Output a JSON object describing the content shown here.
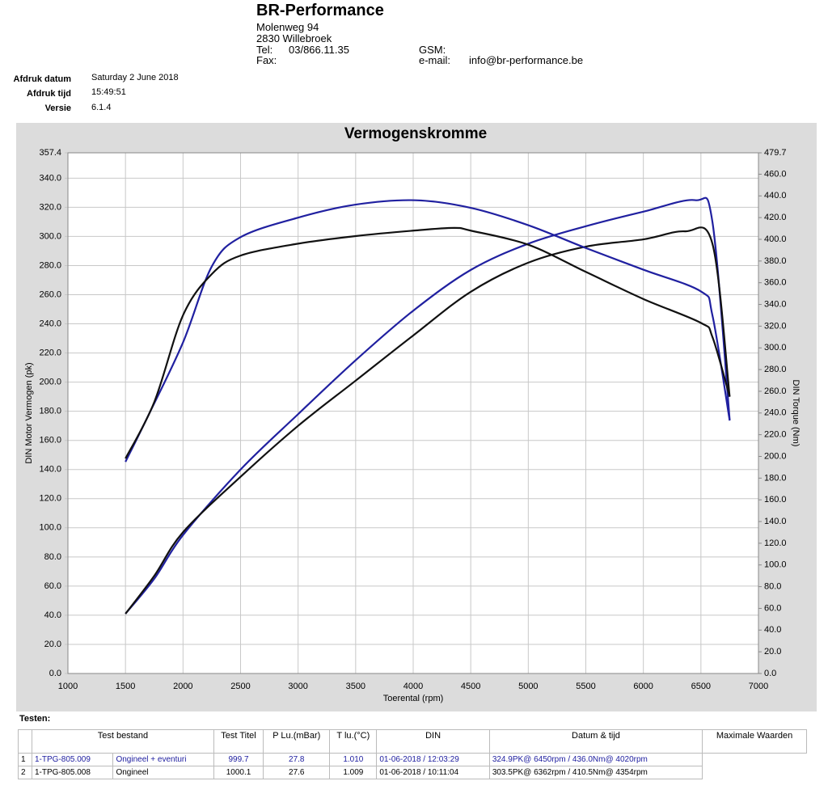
{
  "header": {
    "company": "BR-Performance",
    "street": "Molenweg 94",
    "city": "2830 Willebroek",
    "tel_label": "Tel:",
    "tel": "03/866.11.35",
    "fax_label": "Fax:",
    "gsm_label": "GSM:",
    "email_label": "e-mail:",
    "email": "info@br-performance.be"
  },
  "print_info": [
    {
      "label": "Afdruk datum",
      "value": "Saturday 2 June 2018"
    },
    {
      "label": "Afdruk tijd",
      "value": "15:49:51"
    },
    {
      "label": "Versie",
      "value": "6.1.4"
    }
  ],
  "chart_data": {
    "type": "line",
    "title": "Vermogenskromme",
    "x_label": "Toerental (rpm)",
    "y_label": "DIN Motor Vermogen (pk)",
    "y2_label": "DIN Torque (Nm)",
    "grid": true,
    "xlim": [
      1000,
      7000
    ],
    "xticks": [
      1000,
      1500,
      2000,
      2500,
      3000,
      3500,
      4000,
      4500,
      5000,
      5500,
      6000,
      6500,
      7000
    ],
    "ylim": [
      0,
      357.4
    ],
    "yticks": [
      {
        "value": 0,
        "label": "0.0"
      },
      {
        "value": 20,
        "label": "20.0"
      },
      {
        "value": 40,
        "label": "40.0"
      },
      {
        "value": 60,
        "label": "60.0"
      },
      {
        "value": 80,
        "label": "80.0"
      },
      {
        "value": 100,
        "label": "100.0"
      },
      {
        "value": 120,
        "label": "120.0"
      },
      {
        "value": 140,
        "label": "140.0"
      },
      {
        "value": 160,
        "label": "160.0"
      },
      {
        "value": 180,
        "label": "180.0"
      },
      {
        "value": 200,
        "label": "200.0"
      },
      {
        "value": 220,
        "label": "220.0"
      },
      {
        "value": 240,
        "label": "240.0"
      },
      {
        "value": 260,
        "label": "260.0"
      },
      {
        "value": 280,
        "label": "280.0"
      },
      {
        "value": 300,
        "label": "300.0"
      },
      {
        "value": 320,
        "label": "320.0"
      },
      {
        "value": 340,
        "label": "340.0"
      },
      357.4
    ],
    "y2lim": [
      0,
      479.7
    ],
    "y2ticks": [
      {
        "value": 0,
        "label": "0.0"
      },
      {
        "value": 20,
        "label": "20.0"
      },
      {
        "value": 40,
        "label": "40.0"
      },
      {
        "value": 60,
        "label": "60.0"
      },
      {
        "value": 80,
        "label": "80.0"
      },
      {
        "value": 100,
        "label": "100.0"
      },
      {
        "value": 120,
        "label": "120.0"
      },
      {
        "value": 140,
        "label": "140.0"
      },
      {
        "value": 160,
        "label": "160.0"
      },
      {
        "value": 180,
        "label": "180.0"
      },
      {
        "value": 200,
        "label": "200.0"
      },
      {
        "value": 220,
        "label": "220.0"
      },
      {
        "value": 240,
        "label": "240.0"
      },
      {
        "value": 260,
        "label": "260.0"
      },
      {
        "value": 280,
        "label": "280.0"
      },
      {
        "value": 300,
        "label": "300.0"
      },
      {
        "value": 320,
        "label": "320.0"
      },
      {
        "value": 340,
        "label": "340.0"
      },
      {
        "value": 360,
        "label": "360.0"
      },
      {
        "value": 380,
        "label": "380.0"
      },
      {
        "value": 400,
        "label": "400.0"
      },
      {
        "value": 420,
        "label": "420.0"
      },
      {
        "value": 440,
        "label": "440.0"
      },
      {
        "value": 460,
        "label": "460.0"
      },
      479.7
    ],
    "series": [
      {
        "color": "#2020a0",
        "x": [
          1500,
          1750,
          2000,
          2500,
          3000,
          3500,
          4000,
          4500,
          5000,
          5500,
          6000,
          6450,
          6600,
          6750
        ],
        "values": [
          41,
          65,
          95,
          140,
          178,
          215,
          249,
          277,
          295,
          307,
          317,
          324.9,
          310,
          174
        ]
      },
      {
        "color": "#111111",
        "x": [
          1500,
          1750,
          2000,
          2500,
          3000,
          3500,
          4000,
          4500,
          5000,
          5500,
          6000,
          6362,
          6600,
          6750
        ],
        "values": [
          41,
          67,
          97,
          135,
          170,
          201,
          232,
          262,
          282,
          293,
          298,
          303.5,
          295,
          190
        ]
      },
      {
        "color": "#2020a0",
        "axis": "y2",
        "x": [
          1500,
          1700,
          2000,
          2250,
          2500,
          3000,
          3500,
          4020,
          4500,
          5000,
          5500,
          6000,
          6500,
          6600,
          6750
        ],
        "values": [
          195,
          238,
          305,
          375,
          402,
          420,
          432,
          436,
          429,
          413,
          392,
          372,
          352,
          330,
          233
        ]
      },
      {
        "color": "#111111",
        "axis": "y2",
        "x": [
          1500,
          1750,
          2000,
          2250,
          2500,
          3000,
          3500,
          4000,
          4354,
          4500,
          5000,
          5500,
          6000,
          6500,
          6600,
          6750
        ],
        "values": [
          198,
          250,
          330,
          368,
          385,
          396,
          403,
          408,
          410.5,
          408,
          395,
          370,
          345,
          323,
          310,
          255
        ]
      }
    ]
  },
  "table": {
    "caption": "Testen:",
    "headers": [
      "Test bestand",
      "Test Titel",
      "P Lu.(mBar)",
      "T lu.(°C)",
      "DIN",
      "Datum & tijd",
      "Maximale Waarden"
    ],
    "rows": [
      [
        "1",
        "1-TPG-805.009",
        "Ongineel + eventuri",
        "999.7",
        "27.8",
        "1.010",
        "01-06-2018 / 12:03:29",
        "324.9PK@ 6450rpm / 436.0Nm@ 4020rpm"
      ],
      [
        "2",
        "1-TPG-805.008",
        "Ongineel",
        "1000.1",
        "27.6",
        "1.009",
        "01-06-2018 / 10:11:04",
        "303.5PK@ 6362rpm / 410.5Nm@ 4354rpm"
      ]
    ]
  }
}
